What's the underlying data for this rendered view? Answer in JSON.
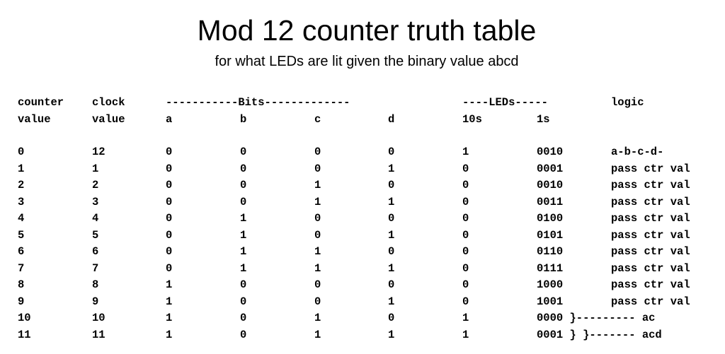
{
  "title": "Mod 12 counter truth table",
  "subtitle": "for what LEDs are lit given the binary value abcd",
  "header": {
    "row1": {
      "counter": "counter",
      "clock": "clock",
      "bits": "-----------Bits-------------",
      "leds": "----LEDs-----",
      "logic": "logic"
    },
    "row2": {
      "counter": "value",
      "clock": "value",
      "a": "a",
      "b": "b",
      "c": "c",
      "d": "d",
      "tens": "10s",
      "ones": "1s"
    }
  },
  "rows": [
    {
      "counter": "0",
      "clock": "12",
      "a": "0",
      "b": "0",
      "c": "0",
      "d": "0",
      "tens": "1",
      "ones": "0010",
      "logic": "a-b-c-d-"
    },
    {
      "counter": "1",
      "clock": "1",
      "a": "0",
      "b": "0",
      "c": "0",
      "d": "1",
      "tens": "0",
      "ones": "0001",
      "logic": "pass ctr val"
    },
    {
      "counter": "2",
      "clock": "2",
      "a": "0",
      "b": "0",
      "c": "1",
      "d": "0",
      "tens": "0",
      "ones": "0010",
      "logic": "pass ctr val"
    },
    {
      "counter": "3",
      "clock": "3",
      "a": "0",
      "b": "0",
      "c": "1",
      "d": "1",
      "tens": "0",
      "ones": "0011",
      "logic": "pass ctr val"
    },
    {
      "counter": "4",
      "clock": "4",
      "a": "0",
      "b": "1",
      "c": "0",
      "d": "0",
      "tens": "0",
      "ones": "0100",
      "logic": "pass ctr val"
    },
    {
      "counter": "5",
      "clock": "5",
      "a": "0",
      "b": "1",
      "c": "0",
      "d": "1",
      "tens": "0",
      "ones": "0101",
      "logic": "pass ctr val"
    },
    {
      "counter": "6",
      "clock": "6",
      "a": "0",
      "b": "1",
      "c": "1",
      "d": "0",
      "tens": "0",
      "ones": "0110",
      "logic": "pass ctr val"
    },
    {
      "counter": "7",
      "clock": "7",
      "a": "0",
      "b": "1",
      "c": "1",
      "d": "1",
      "tens": "0",
      "ones": "0111",
      "logic": "pass ctr val"
    },
    {
      "counter": "8",
      "clock": "8",
      "a": "1",
      "b": "0",
      "c": "0",
      "d": "0",
      "tens": "0",
      "ones": "1000",
      "logic": "pass ctr val"
    },
    {
      "counter": "9",
      "clock": "9",
      "a": "1",
      "b": "0",
      "c": "0",
      "d": "1",
      "tens": "0",
      "ones": "1001",
      "logic": "pass ctr val"
    },
    {
      "counter": "10",
      "clock": "10",
      "a": "1",
      "b": "0",
      "c": "1",
      "d": "0",
      "tens": "1",
      "ones": "0000 }--------- ac",
      "logic": ""
    },
    {
      "counter": "11",
      "clock": "11",
      "a": "1",
      "b": "0",
      "c": "1",
      "d": "1",
      "tens": "1",
      "ones": "0001 } }------- acd",
      "logic": ""
    }
  ]
}
